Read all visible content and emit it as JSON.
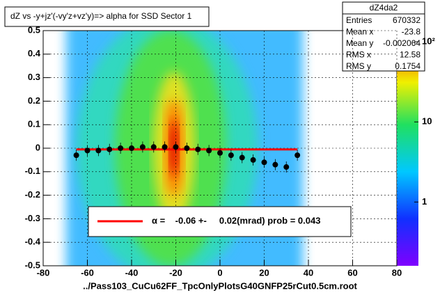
{
  "chart_data": {
    "type": "heatmap",
    "title": "dZ vs -y+jz'(-vy'z+vz'y)=> alpha for SSD Sector 1",
    "x_label": "../Pass103_CuCu62FF_TpcOnlyPlotsG40GNFP25rCut0.5cm.root",
    "xlim": [
      -80,
      80
    ],
    "xticks": [
      -80,
      -60,
      -40,
      -20,
      0,
      20,
      40,
      60,
      80
    ],
    "ylim": [
      -0.5,
      0.5
    ],
    "yticks": [
      -0.5,
      -0.4,
      -0.3,
      -0.2,
      -0.1,
      0,
      0.1,
      0.2,
      0.3,
      0.4,
      0.5
    ],
    "grid": true,
    "zlim": [
      0.16,
      138
    ],
    "zscale": "log",
    "zticks": [
      1,
      10,
      {
        "value": 100,
        "label": "10²"
      }
    ],
    "profile": {
      "name": "profile",
      "color": "#000000",
      "x": [
        -65,
        -60,
        -55,
        -50,
        -45,
        -40,
        -35,
        -30,
        -25,
        -20,
        -15,
        -10,
        -5,
        0,
        5,
        10,
        15,
        20,
        25,
        30,
        35
      ],
      "values": [
        -0.03,
        -0.01,
        -0.01,
        -0.005,
        0,
        0,
        0.005,
        0.005,
        0.005,
        0.005,
        0,
        -0.005,
        -0.01,
        -0.02,
        -0.03,
        -0.04,
        -0.05,
        -0.06,
        -0.07,
        -0.08,
        -0.03
      ]
    },
    "fit": {
      "color": "#ff0000",
      "x": [
        -65,
        35
      ],
      "values": [
        -0.005,
        -0.005
      ]
    },
    "legend_text": "α =    -0.06 +-     0.02(mrad) prob = 0.043",
    "stats": {
      "title": "dZ4da2",
      "entries": [
        {
          "name": "Entries",
          "value": 670332
        },
        {
          "name": "Mean x",
          "value": -23.8
        },
        {
          "name": "Mean y",
          "value": -0.002064
        },
        {
          "name": "RMS x",
          "value": 12.58
        },
        {
          "name": "RMS y",
          "value": 0.1754
        }
      ]
    }
  }
}
